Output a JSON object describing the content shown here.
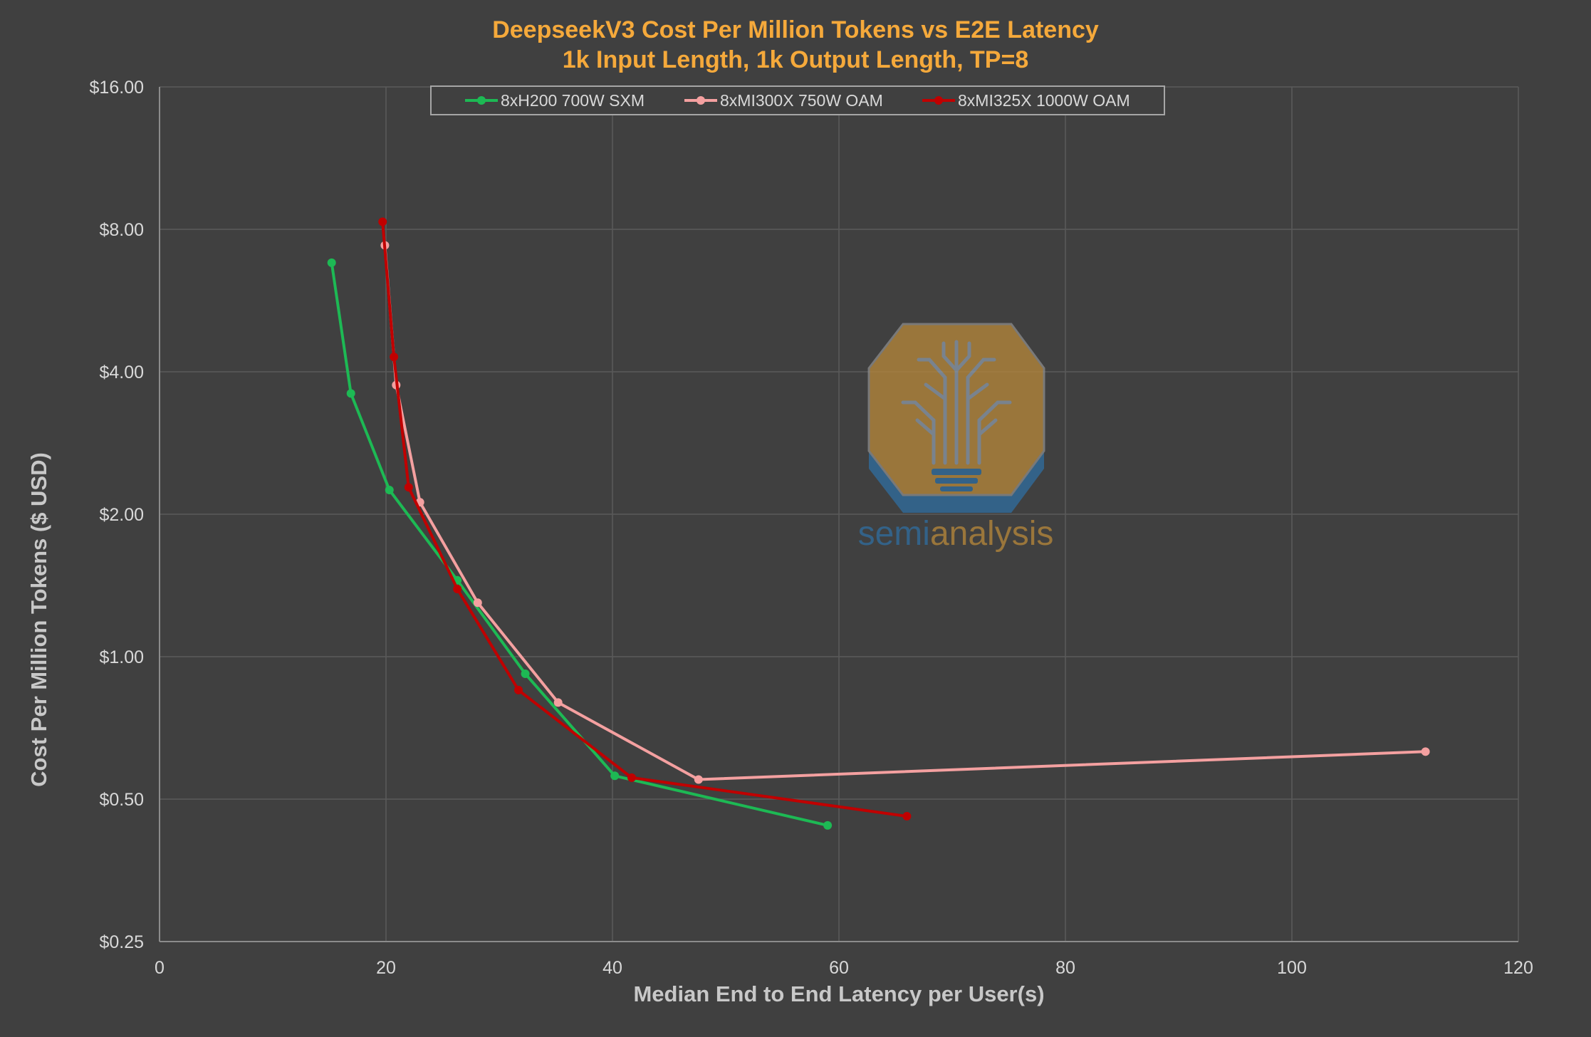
{
  "colors": {
    "background": "#404040",
    "title": "#F5A93B",
    "text": "#D9D9D9",
    "axis_title": "#C8C8C8",
    "grid": "#5A5A5A",
    "logo_gold": "#B8883A",
    "logo_blue": "#2F6EA0"
  },
  "chart_data": {
    "type": "line",
    "title": "DeepseekV3 Cost Per Million Tokens vs E2E Latency",
    "subtitle": "1k Input Length, 1k Output Length, TP=8",
    "xlabel": "Median End to End Latency per User(s)",
    "ylabel": "Cost Per Million Tokens ($ USD)",
    "xlim": [
      0,
      120
    ],
    "ylim": [
      0.25,
      16
    ],
    "yscale": "log2",
    "grid": true,
    "legend_position": "top-center",
    "x_ticks": [
      0,
      20,
      40,
      60,
      80,
      100,
      120
    ],
    "x_tick_labels": [
      "0",
      "20",
      "40",
      "60",
      "80",
      "100",
      "120"
    ],
    "y_ticks": [
      0.25,
      0.5,
      1,
      2,
      4,
      8,
      16
    ],
    "y_tick_labels": [
      "$0.25",
      "$0.50",
      "$1.00",
      "$2.00",
      "$4.00",
      "$8.00",
      "$16.00"
    ],
    "series": [
      {
        "name": "8xH200 700W SXM",
        "color": "#1DB954",
        "x": [
          15.2,
          16.9,
          20.3,
          26.3,
          32.3,
          40.2,
          59.0
        ],
        "y": [
          6.8,
          3.6,
          2.25,
          1.45,
          0.92,
          0.56,
          0.44
        ]
      },
      {
        "name": "8xMI300X 750W OAM",
        "color": "#F4A0A0",
        "x": [
          19.9,
          20.9,
          23.0,
          28.1,
          35.2,
          47.6,
          111.8
        ],
        "y": [
          7.4,
          3.75,
          2.12,
          1.3,
          0.8,
          0.55,
          0.63
        ]
      },
      {
        "name": "8xMI325X 1000W OAM",
        "color": "#C00000",
        "x": [
          19.7,
          20.7,
          22.0,
          26.3,
          31.7,
          41.7,
          66.0
        ],
        "y": [
          8.3,
          4.3,
          2.28,
          1.39,
          0.85,
          0.555,
          0.46
        ]
      }
    ]
  },
  "watermark": {
    "icon": "circuit-tree-lightbulb-icon",
    "text_part1": "semi",
    "text_part2": "analysis"
  }
}
